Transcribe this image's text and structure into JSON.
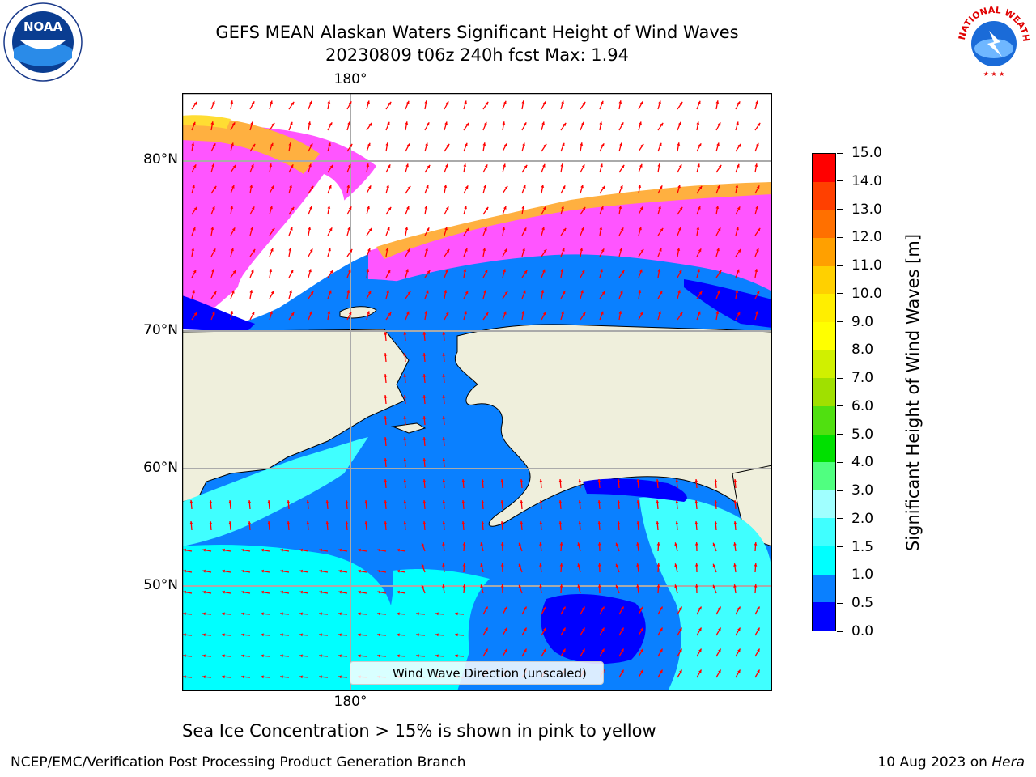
{
  "title": {
    "line1": "GEFS MEAN Alaskan Waters Significant Height of Wind Waves",
    "line2": "20230809 t06z 240h fcst   Max: 1.94"
  },
  "map": {
    "lon_top_label": "180°",
    "lon_bottom_label": "180°",
    "lat_labels": [
      "80°N",
      "70°N",
      "60°N",
      "50°N"
    ],
    "legend_label": "Wind Wave Direction (unscaled)",
    "ocean_colors": {
      "below_0_5": "#0000ff",
      "0_5_to_1_0": "#0a80ff",
      "1_0_to_1_5": "#00ffff",
      "1_5_to_2_0": "#40ffff",
      "ice_pink": "#ff55ff",
      "ice_orange": "#ffb040",
      "ice_yellow": "#ffdd33",
      "land": "#efefdc",
      "arrow": "#ff0000"
    }
  },
  "colorbar": {
    "title": "Significant Height of Wind Waves [m]",
    "ticks": [
      "0.0",
      "0.5",
      "1.0",
      "1.5",
      "2.0",
      "3.0",
      "4.0",
      "5.0",
      "6.0",
      "7.0",
      "8.0",
      "9.0",
      "10.0",
      "11.0",
      "12.0",
      "13.0",
      "14.0",
      "15.0"
    ],
    "colors": [
      "#0000ff",
      "#0a80ff",
      "#00ffff",
      "#40ffff",
      "#a0ffff",
      "#50ff80",
      "#00e000",
      "#50e010",
      "#a0e000",
      "#d0f000",
      "#ffff00",
      "#ffee00",
      "#ffd000",
      "#ffa000",
      "#ff7000",
      "#ff4000",
      "#ff0000"
    ]
  },
  "notes": {
    "ice": "Sea Ice Concentration > 15% is shown in pink to yellow",
    "footer_left": "NCEP/EMC/Verification Post Processing Product Generation Branch",
    "footer_date": "10 Aug 2023 on ",
    "footer_machine": "Hera"
  },
  "logos": {
    "noaa": "NOAA",
    "nws": "NATIONAL WEATHER SERVICE"
  }
}
